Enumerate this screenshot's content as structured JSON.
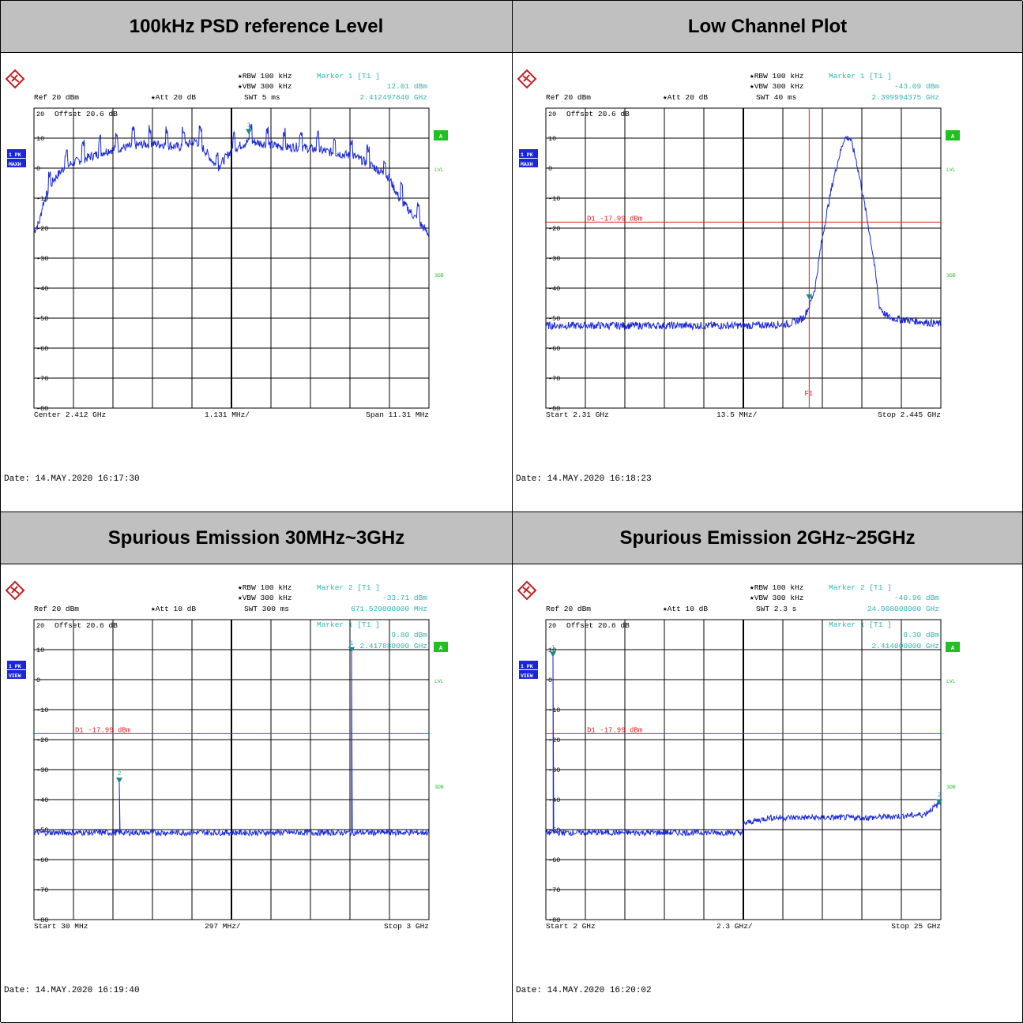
{
  "colors": {
    "trace": "#1a28d8",
    "info": "#2fb4b4",
    "display_line": "#e02020",
    "grid": "#000000",
    "header_bg": "#c0c0c0",
    "status_green": "#21c021",
    "tag_blue": "#1a28d8"
  },
  "icons": {
    "logo": "rohde-schwarz-logo-icon"
  },
  "panels": [
    {
      "title": "100kHz PSD reference Level",
      "info": {
        "rbw": "RBW 100 kHz",
        "vbw": "VBW 300 kHz",
        "swt": "SWT 5 ms",
        "ref": "Ref  20 dBm",
        "att": "Att  20 dB",
        "marker_head": "Marker 1 [T1 ]",
        "marker_level": "12.01 dBm",
        "marker_freq": "2.412497640 GHz"
      },
      "offset": "Offset  20.6 dB",
      "left_tags": [
        "1 PK",
        "MAXH"
      ],
      "right_labels": [
        "A",
        "LVL",
        "3DB"
      ],
      "footer": {
        "left": "Center 2.412 GHz",
        "mid": "1.131 MHz/",
        "right": "Span 11.31 MHz"
      },
      "date": "Date: 14.MAY.2020  16:17:30",
      "chart_data": {
        "type": "line",
        "xlim": [
          2.406345,
          2.417655
        ],
        "x_unit": "GHz",
        "ylim": [
          -80,
          20
        ],
        "y_unit": "dBm",
        "y_ticks": [
          20,
          10,
          0,
          -10,
          -20,
          -30,
          -40,
          -50,
          -60,
          -70,
          -80
        ],
        "series": [
          {
            "x": [
              2.40635,
              2.4065,
              2.4066,
              2.4069,
              2.4072,
              2.4075,
              2.408,
              2.4085,
              2.409,
              2.4095,
              2.41,
              2.4105,
              2.411,
              2.4113,
              2.4116,
              2.412,
              2.4125,
              2.413,
              2.4135,
              2.414,
              2.4145,
              2.415,
              2.4155,
              2.416,
              2.4165,
              2.4168,
              2.41765
            ],
            "y": [
              -21,
              -18,
              -12,
              -4,
              0,
              2,
              4,
              6,
              7,
              8,
              8,
              7,
              9,
              5,
              0,
              6,
              9,
              8,
              7,
              7,
              6,
              5,
              4,
              1,
              -3,
              -10,
              -22
            ],
            "ripple": 3,
            "spur_step": 0.00048,
            "spur_height": 5
          }
        ],
        "markers": [
          {
            "label": "1",
            "x": 2.4124976,
            "y": 12.01
          }
        ],
        "display_line": null,
        "f1_line": null,
        "vsplit": 2.412
      }
    },
    {
      "title": "Low Channel Plot",
      "info": {
        "rbw": "RBW 100 kHz",
        "vbw": "VBW 300 kHz",
        "swt": "SWT 40 ms",
        "ref": "Ref  20 dBm",
        "att": "Att  20 dB",
        "marker_head": "Marker 1 [T1 ]",
        "marker_level": "-43.09 dBm",
        "marker_freq": "2.399994375 GHz"
      },
      "offset": "Offset  20.6 dB",
      "left_tags": [
        "1 PK",
        "MAXH"
      ],
      "right_labels": [
        "A",
        "LVL",
        "3DB"
      ],
      "footer": {
        "left": "Start 2.31 GHz",
        "mid": "13.5 MHz/",
        "right": "Stop 2.445 GHz"
      },
      "date": "Date: 14.MAY.2020  16:18:23",
      "chart_data": {
        "type": "line",
        "xlim": [
          2.31,
          2.445
        ],
        "x_unit": "GHz",
        "ylim": [
          -80,
          20
        ],
        "y_unit": "dBm",
        "y_ticks": [
          20,
          10,
          0,
          -10,
          -20,
          -30,
          -40,
          -50,
          -60,
          -70,
          -80
        ],
        "series": [
          {
            "x": [
              2.31,
              2.35,
              2.38,
              2.393,
              2.398,
              2.4,
              2.402,
              2.404,
              2.406,
              2.408,
              2.41,
              2.412,
              2.414,
              2.416,
              2.418,
              2.42,
              2.422,
              2.424,
              2.426,
              2.428,
              2.445
            ],
            "y": [
              -52.5,
              -52.5,
              -52.5,
              -52,
              -50,
              -46,
              -40,
              -26,
              -15,
              -5,
              3,
              10,
              10,
              3,
              -7,
              -18,
              -30,
              -46,
              -49,
              -50,
              -52
            ],
            "ripple": 2.5,
            "spur_step": 0,
            "spur_height": 0
          }
        ],
        "markers": [
          {
            "label": "",
            "x": 2.399994,
            "y": -43.09
          }
        ],
        "display_line": {
          "value": -17.99,
          "label": "D1  -17.99 dBm"
        },
        "f1_line": {
          "x": 2.4,
          "label": "F1"
        },
        "vsplit": 2.3775
      }
    },
    {
      "title": "Spurious Emission 30MHz~3GHz",
      "info": {
        "rbw": "RBW 100 kHz",
        "vbw": "VBW 300 kHz",
        "swt": "SWT 300 ms",
        "ref": "Ref  20 dBm",
        "att": "Att  10 dB",
        "marker_head": "Marker 2 [T1 ]",
        "marker_level": "-33.71 dBm",
        "marker_freq": "671.520000000 MHz"
      },
      "marker2": {
        "head": "Marker 1 [T1 ]",
        "level": "9.80 dBm",
        "freq": "2.417880000 GHz"
      },
      "offset": "Offset  20.6 dB",
      "left_tags": [
        "1 PK",
        "VIEW"
      ],
      "right_labels": [
        "A",
        "LVL",
        "3DB"
      ],
      "footer": {
        "left": "Start 30 MHz",
        "mid": "297 MHz/",
        "right": "Stop 3 GHz"
      },
      "date": "Date: 14.MAY.2020  16:19:40",
      "chart_data": {
        "type": "line",
        "xlim": [
          30,
          3000
        ],
        "x_unit": "MHz",
        "ylim": [
          -80,
          20
        ],
        "y_unit": "dBm",
        "y_ticks": [
          20,
          10,
          0,
          -10,
          -20,
          -30,
          -40,
          -50,
          -60,
          -70,
          -80
        ],
        "series": [
          {
            "x": [
              30,
              3000
            ],
            "y": [
              -51,
              -51
            ],
            "ripple": 2,
            "spur_step": 0,
            "spur_height": 0,
            "spikes": [
              {
                "x": 671.52,
                "y": -33.71
              },
              {
                "x": 2417.88,
                "y": 9.8
              }
            ]
          }
        ],
        "markers": [
          {
            "label": "2",
            "x": 671.52,
            "y": -33.71
          },
          {
            "label": "1",
            "x": 2417.88,
            "y": 9.8
          }
        ],
        "display_line": {
          "value": -17.99,
          "label": "D1  -17.99 dBm"
        },
        "f1_line": null,
        "vsplit": 1515
      }
    },
    {
      "title": "Spurious Emission 2GHz~25GHz",
      "info": {
        "rbw": "RBW 100 kHz",
        "vbw": "VBW 300 kHz",
        "swt": "SWT 2.3 s",
        "ref": "Ref  20 dBm",
        "att": "Att  10 dB",
        "marker_head": "Marker 2 [T1 ]",
        "marker_level": "-40.96 dBm",
        "marker_freq": "24.908000000 GHz"
      },
      "marker2": {
        "head": "Marker 1 [T1 ]",
        "level": "8.30 dBm",
        "freq": "2.414000000 GHz"
      },
      "offset": "Offset  20.6 dB",
      "left_tags": [
        "1 PK",
        "VIEW"
      ],
      "right_labels": [
        "A",
        "LVL",
        "3DB"
      ],
      "footer": {
        "left": "Start 2 GHz",
        "mid": "2.3 GHz/",
        "right": "Stop 25 GHz"
      },
      "date": "Date: 14.MAY.2020  16:20:02",
      "chart_data": {
        "type": "line",
        "xlim": [
          2,
          25
        ],
        "x_unit": "GHz",
        "ylim": [
          -80,
          20
        ],
        "y_unit": "dBm",
        "y_ticks": [
          20,
          10,
          0,
          -10,
          -20,
          -30,
          -40,
          -50,
          -60,
          -70,
          -80
        ],
        "series": [
          {
            "x": [
              2,
              2.5,
              6,
              10,
              13.49,
              13.5,
              15,
              18,
              21,
              24,
              25
            ],
            "y": [
              -51,
              -51,
              -51,
              -51,
              -51,
              -48,
              -46,
              -46,
              -46,
              -45,
              -41
            ],
            "ripple": 2,
            "spur_step": 0,
            "spur_height": 0,
            "spikes": [
              {
                "x": 2.414,
                "y": 8.3
              }
            ]
          }
        ],
        "markers": [
          {
            "label": "1",
            "x": 2.414,
            "y": 8.3
          },
          {
            "label": "2",
            "x": 24.908,
            "y": -40.96
          }
        ],
        "display_line": {
          "value": -17.99,
          "label": "D1  -17.99 dBm"
        },
        "f1_line": null,
        "vsplit": 13.5
      }
    }
  ]
}
